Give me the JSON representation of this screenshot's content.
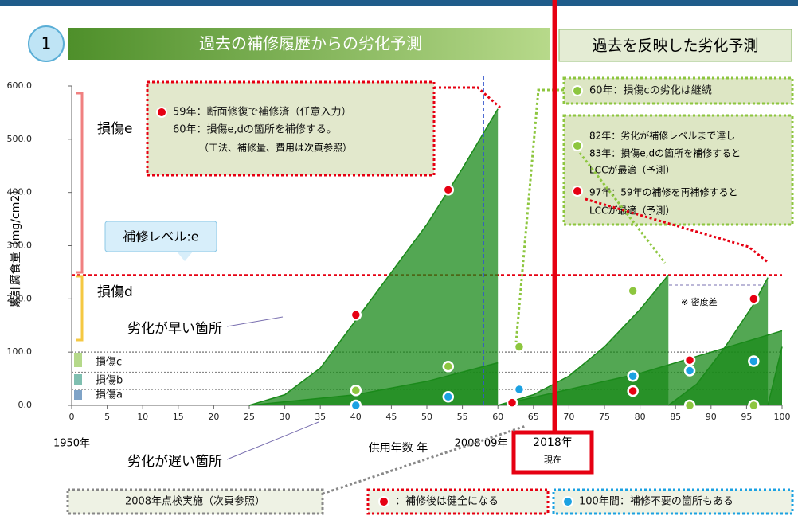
{
  "header": {
    "number": "1",
    "left_title": "過去の補修履歴からの劣化予測",
    "right_title": "過去を反映した劣化予測"
  },
  "annotations": {
    "box1": [
      "59年：断面修復で補修済（任意入力）",
      "60年：損傷e,dの箇所を補修する。",
      "（工法、補修量、費用は次頁参照）"
    ],
    "box2": "60年：損傷cの劣化は継続",
    "box3": [
      "82年：劣化が補修レベルまで達し",
      "83年：損傷e,dの箇所を補修すると",
      "LCCが最適（予測）",
      "97年：59年の補修を再補修すると",
      "LCCが最適（予測）"
    ],
    "damage": [
      "損傷e",
      "損傷d",
      "損傷c",
      "損傷b",
      "損傷a"
    ],
    "repair_level": "補修レベル:e",
    "fast": "劣化が早い箇所",
    "slow": "劣化が遅い箇所",
    "density": "※ 密度差",
    "start_year": "1950年",
    "inspection_year": "2008 09年",
    "now_year": "2018年",
    "now": "現在",
    "footer": [
      "2008年点検実施（次頁参照）",
      "：補修後は健全になる",
      "100年間：補修不要の箇所もある"
    ]
  },
  "chart_data": {
    "type": "line",
    "x_label": "供用年数 年",
    "y_label": "累計腐食量（mg/cm2）",
    "xlim": [
      0,
      100
    ],
    "ylim": [
      0,
      600
    ],
    "xticks": [
      0,
      5,
      10,
      15,
      20,
      25,
      30,
      35,
      40,
      45,
      50,
      55,
      60,
      65,
      70,
      75,
      80,
      85,
      90,
      95,
      100
    ],
    "yticks": [
      {
        "value": 0,
        "label": "0.0"
      },
      {
        "value": 100,
        "label": "100.0"
      },
      {
        "value": 200,
        "label": "200.0"
      },
      {
        "value": 300,
        "label": "300.0"
      },
      {
        "value": 400,
        "label": "400.0"
      },
      {
        "value": 500,
        "label": "500.0"
      },
      {
        "value": 600,
        "label": "600.0"
      }
    ],
    "curves": [
      {
        "color": "#1a8a1a",
        "x": [
          25,
          30,
          35,
          40,
          45,
          50,
          55,
          60
        ],
        "values": [
          0,
          20,
          70,
          160,
          250,
          340,
          445,
          557
        ]
      },
      {
        "color": "#1a8a1a",
        "x": [
          25,
          40,
          50,
          60
        ],
        "values": [
          0,
          20,
          45,
          80
        ]
      },
      {
        "color": "#1a8a1a",
        "x": [
          60,
          65,
          70,
          75,
          80,
          84
        ],
        "values": [
          0,
          20,
          55,
          110,
          180,
          245
        ]
      },
      {
        "color": "#1a8a1a",
        "x": [
          60,
          70,
          80,
          90,
          100
        ],
        "values": [
          0,
          30,
          60,
          100,
          140
        ]
      },
      {
        "color": "#1a8a1a",
        "x": [
          84,
          88,
          92,
          96,
          98
        ],
        "values": [
          0,
          40,
          110,
          190,
          240
        ]
      },
      {
        "color": "#1a8a1a",
        "x": [
          98,
          100
        ],
        "values": [
          0,
          110
        ]
      }
    ],
    "dots": [
      {
        "color": "#e60012",
        "x": [
          40,
          53,
          62,
          79,
          87,
          96
        ],
        "values": [
          170,
          405,
          5,
          27,
          85,
          200
        ]
      },
      {
        "color": "#8dc63f",
        "x": [
          40,
          53,
          63,
          79,
          87,
          96
        ],
        "values": [
          28,
          73,
          110,
          215,
          0,
          0
        ]
      },
      {
        "color": "#1ba1e2",
        "x": [
          40,
          53,
          63,
          79,
          87,
          96
        ],
        "values": [
          0,
          16,
          30,
          55,
          65,
          83
        ]
      }
    ],
    "levels": [
      {
        "value": 245,
        "color": "#e60012"
      },
      {
        "value": 100,
        "color": "#888888"
      },
      {
        "value": 62,
        "color": "#888888"
      },
      {
        "value": 30,
        "color": "#888888"
      }
    ],
    "vlines": [
      {
        "value": 58,
        "color": "#3355cc"
      },
      {
        "value": 68,
        "color": "#e60012"
      }
    ]
  }
}
